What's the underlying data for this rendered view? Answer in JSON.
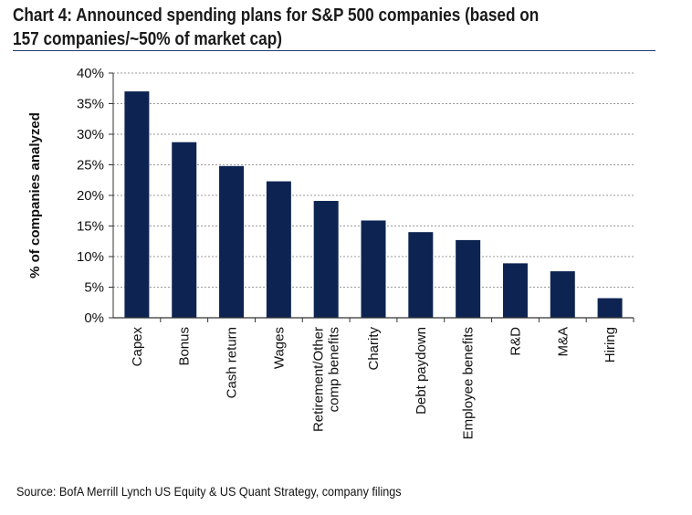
{
  "header": {
    "title_line1": "Chart 4: Announced spending plans for S&P 500 companies (based on",
    "title_line2": "157 companies/~50% of market cap)"
  },
  "footer": {
    "source": "Source: BofA Merrill Lynch US Equity & US Quant Strategy, company filings"
  },
  "chart_data": {
    "type": "bar",
    "title": "Chart 4: Announced spending plans for S&P 500 companies (based on 157 companies/~50% of market cap)",
    "ylabel": "% of companies analyzed",
    "xlabel": "",
    "ylim": [
      0,
      40
    ],
    "y_ticks": [
      0,
      5,
      10,
      15,
      20,
      25,
      30,
      35,
      40
    ],
    "y_tick_labels": [
      "0%",
      "5%",
      "10%",
      "15%",
      "20%",
      "25%",
      "30%",
      "35%",
      "40%"
    ],
    "grid": true,
    "legend": "none",
    "bar_color": "#0d2452",
    "categories": [
      [
        "Capex"
      ],
      [
        "Bonus"
      ],
      [
        "Cash return"
      ],
      [
        "Wages"
      ],
      [
        "Retirement/Other",
        "comp benefits"
      ],
      [
        "Charity"
      ],
      [
        "Debt paydown"
      ],
      [
        "Employee benefits"
      ],
      [
        "R&D"
      ],
      [
        "M&A"
      ],
      [
        "Hiring"
      ]
    ],
    "values": [
      37,
      28.7,
      24.8,
      22.3,
      19.1,
      15.9,
      14,
      12.7,
      8.9,
      7.6,
      3.2
    ]
  }
}
